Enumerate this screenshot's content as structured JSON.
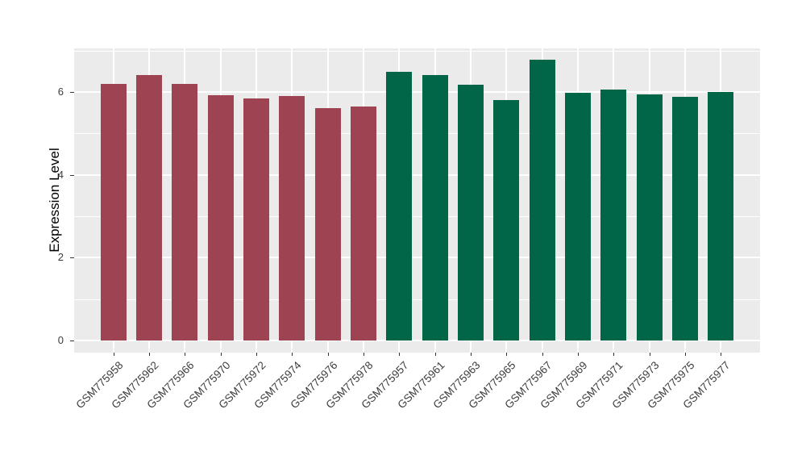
{
  "chart_data": {
    "type": "bar",
    "title": "",
    "xlabel": "",
    "ylabel": "Expression Level",
    "categories": [
      "GSM775958",
      "GSM775962",
      "GSM775966",
      "GSM775970",
      "GSM775972",
      "GSM775974",
      "GSM775976",
      "GSM775978",
      "GSM775957",
      "GSM775961",
      "GSM775963",
      "GSM775965",
      "GSM775967",
      "GSM775969",
      "GSM775971",
      "GSM775973",
      "GSM775975",
      "GSM775977"
    ],
    "values": [
      6.2,
      6.41,
      6.19,
      5.92,
      5.85,
      5.91,
      5.6,
      5.65,
      6.48,
      6.4,
      6.18,
      5.8,
      6.77,
      5.97,
      6.05,
      5.94,
      5.88,
      5.99
    ],
    "bar_colors": [
      "#9E4352",
      "#9E4352",
      "#9E4352",
      "#9E4352",
      "#9E4352",
      "#9E4352",
      "#9E4352",
      "#9E4352",
      "#006647",
      "#006647",
      "#006647",
      "#006647",
      "#006647",
      "#006647",
      "#006647",
      "#006647",
      "#006647",
      "#006647"
    ],
    "group_colors": {
      "group_1": "#9E4352",
      "group_2": "#006647"
    },
    "ylim": [
      0,
      7.05
    ],
    "yticks": [
      0,
      2,
      4,
      6
    ],
    "yticks_minor": [
      1,
      3,
      5,
      7
    ],
    "grid": true,
    "legend_position": "none",
    "plot_bg_color": "#EBEBEB",
    "grid_color": "#FFFFFF",
    "tick_text_color": "#3C3C3C"
  }
}
